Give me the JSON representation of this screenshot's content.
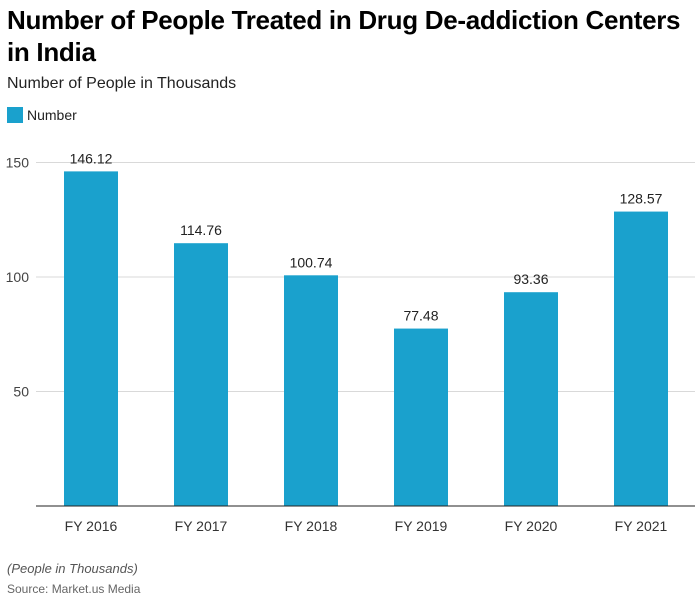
{
  "chart_data": {
    "type": "bar",
    "title": "Number of People Treated in Drug De-addiction Centers in India",
    "subtitle": "Number of People in Thousands",
    "categories": [
      "FY 2016",
      "FY 2017",
      "FY 2018",
      "FY 2019",
      "FY 2020",
      "FY 2021"
    ],
    "series": [
      {
        "name": "Number",
        "values": [
          146.12,
          114.76,
          100.74,
          77.48,
          93.36,
          128.57
        ],
        "color": "#1aa1cd"
      }
    ],
    "yticks": [
      50,
      100,
      150
    ],
    "ylim": [
      0,
      150
    ],
    "grid": true,
    "legend_position": "top-left",
    "note": "(People in Thousands)",
    "source": "Source: Market.us Media"
  }
}
